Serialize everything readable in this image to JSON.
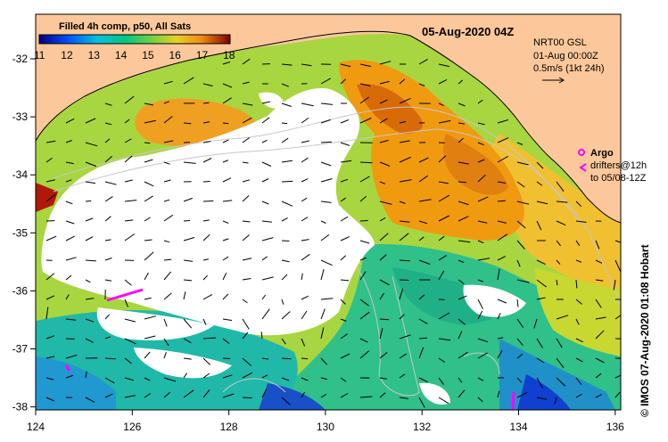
{
  "title": "05-Aug-2020 04Z",
  "colorbar": {
    "label": "Filled 4h comp, p50, All Sats",
    "ticks": [
      "11",
      "12",
      "13",
      "14",
      "15",
      "16",
      "17",
      "18"
    ]
  },
  "product": {
    "line1": "NRT00 GSL",
    "line2": "01-Aug 00:00Z",
    "line3": "0.5m/s (1kt 24h)"
  },
  "legend": {
    "argo": "Argo",
    "drifters": "drifters@12h",
    "drifters_to": "to 05/08-12Z"
  },
  "credit": "© IMOS 07-Aug-2020 01:08 Hobart",
  "axes": {
    "x_ticks": [
      "124",
      "126",
      "128",
      "130",
      "132",
      "134",
      "136"
    ],
    "y_ticks": [
      "-32",
      "-33",
      "-34",
      "-35",
      "-36",
      "-37",
      "-38"
    ]
  },
  "colors": {
    "land": "#fcc89b",
    "no_data": "#ffffff",
    "argo": "#ff00ff",
    "drifter": "#e020e0",
    "sst_scale": [
      "#000080",
      "#0050ff",
      "#00c0e0",
      "#00c880",
      "#7ad240",
      "#e8d028",
      "#f08c10",
      "#c04000",
      "#800000"
    ]
  }
}
